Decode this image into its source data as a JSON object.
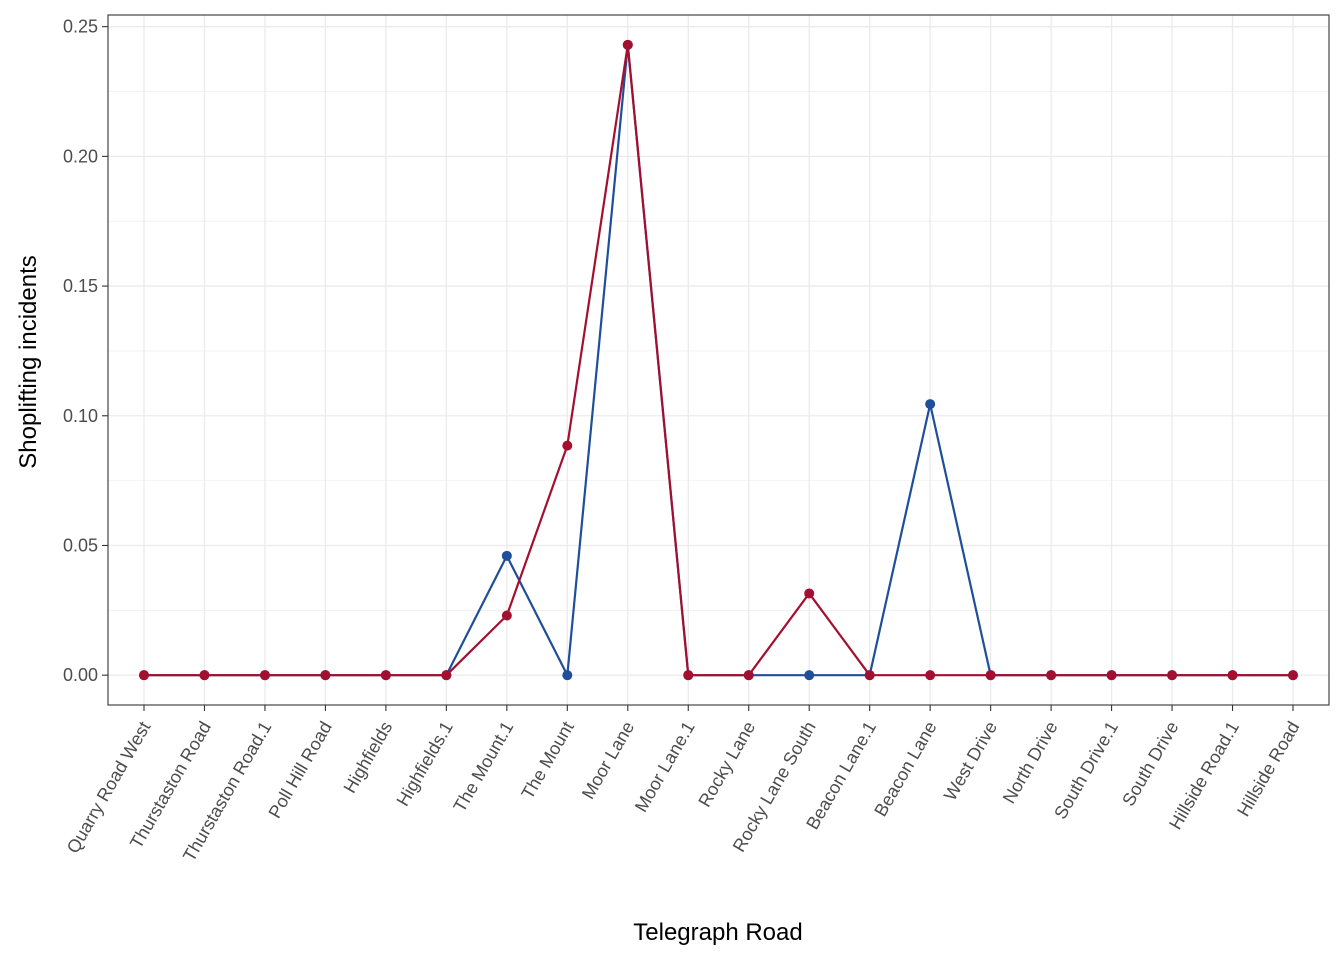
{
  "chart_data": {
    "type": "line",
    "title": "",
    "xlabel": "Telegraph Road",
    "ylabel": "Shoplifting incidents",
    "ylim": [
      -0.0115,
      0.2545
    ],
    "yticks": [
      0.0,
      0.05,
      0.1,
      0.15,
      0.2,
      0.25
    ],
    "ytick_labels": [
      "0.00",
      "0.05",
      "0.10",
      "0.15",
      "0.20",
      "0.25"
    ],
    "grid": true,
    "legend": "none",
    "categories": [
      "Quarry Road West",
      "Thurstaston Road",
      "Thurstaston Road.1",
      "Poll Hill Road",
      "Highfields",
      "Highfields.1",
      "The Mount.1",
      "The Mount",
      "Moor Lane",
      "Moor Lane.1",
      "Rocky Lane",
      "Rocky Lane South",
      "Beacon Lane.1",
      "Beacon Lane",
      "West Drive",
      "North Drive",
      "South Drive.1",
      "South Drive",
      "Hillside Road.1",
      "Hillside Road"
    ],
    "series": [
      {
        "color": "#1f4e9a",
        "values": [
          0,
          0,
          0,
          0,
          0,
          0,
          0.046,
          0,
          0.243,
          0,
          0,
          0,
          0,
          0.1045,
          0,
          0,
          0,
          0,
          0,
          0
        ]
      },
      {
        "color": "#a50f2f",
        "values": [
          0,
          0,
          0,
          0,
          0,
          0,
          0.023,
          0.0885,
          0.243,
          0,
          0,
          0.0315,
          0,
          0,
          0,
          0,
          0,
          0,
          0,
          0
        ]
      }
    ]
  }
}
